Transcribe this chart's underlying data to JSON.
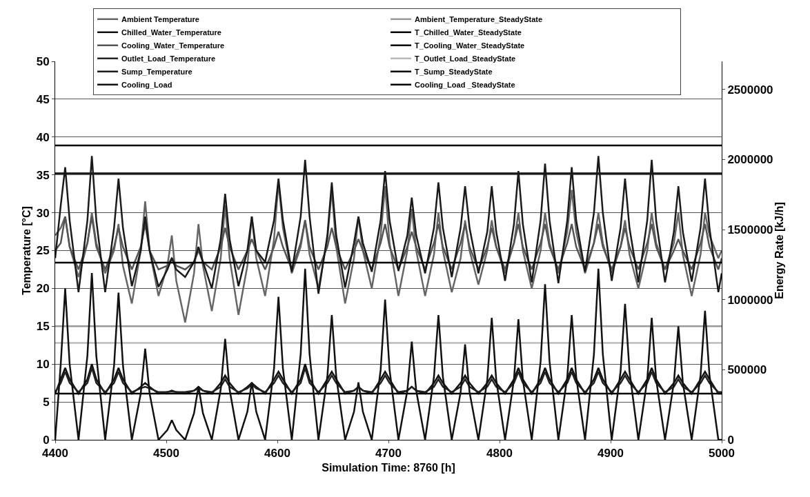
{
  "chart_data": {
    "type": "line",
    "xlabel": "Simulation Time: 8760 [h]",
    "ylabel": "Temperature [°C]",
    "y2label": "Energy Rate [kJ/h]",
    "x": [
      4400,
      4405,
      4409,
      4413,
      4421,
      4429,
      4433,
      4437,
      4445,
      4453,
      4457,
      4461,
      4469,
      4477,
      4481,
      4485,
      4493,
      4501,
      4505,
      4509,
      4517,
      4525,
      4529,
      4533,
      4541,
      4549,
      4553,
      4557,
      4565,
      4573,
      4577,
      4581,
      4589,
      4597,
      4601,
      4605,
      4613,
      4621,
      4625,
      4629,
      4637,
      4645,
      4649,
      4653,
      4661,
      4669,
      4673,
      4677,
      4685,
      4693,
      4697,
      4701,
      4709,
      4717,
      4721,
      4725,
      4733,
      4741,
      4745,
      4749,
      4757,
      4765,
      4769,
      4773,
      4781,
      4789,
      4793,
      4797,
      4805,
      4813,
      4817,
      4821,
      4829,
      4837,
      4841,
      4845,
      4853,
      4861,
      4865,
      4869,
      4877,
      4885,
      4889,
      4893,
      4901,
      4909,
      4913,
      4917,
      4925,
      4933,
      4937,
      4941,
      4949,
      4957,
      4961,
      4965,
      4973,
      4981,
      4985,
      4989,
      4997,
      5000
    ],
    "xlim": [
      4400,
      5000
    ],
    "xticks": [
      4400,
      4500,
      4600,
      4700,
      4800,
      4900,
      5000
    ],
    "ylim": [
      0,
      50
    ],
    "yticks": [
      0,
      5,
      10,
      15,
      20,
      25,
      30,
      35,
      40,
      45,
      50
    ],
    "y2lim": [
      0,
      2700000
    ],
    "y2ticks": [
      0,
      500000,
      1000000,
      1500000,
      2000000,
      2500000
    ],
    "grid": "y",
    "legend": "top",
    "marker": "none",
    "line_style": "solid",
    "series": [
      {
        "name": "Ambient Temperature",
        "color": "#666666",
        "values": [
          27,
          28,
          29.5,
          25.5,
          21.5,
          26,
          30,
          26,
          22,
          25,
          28.5,
          23,
          18,
          25,
          31.5,
          25,
          19,
          23,
          27,
          21,
          15.5,
          22,
          28.5,
          23,
          17,
          24,
          31,
          24,
          16.5,
          23,
          29.5,
          24,
          19,
          26.5,
          34,
          28,
          22,
          25.5,
          29,
          24.5,
          20,
          26.5,
          33,
          25.5,
          18,
          24,
          29.5,
          25,
          20,
          27,
          33.5,
          26,
          19,
          25,
          30.5,
          25,
          19,
          24.5,
          30,
          25,
          19.5,
          24,
          29,
          25,
          20.5,
          25,
          29,
          25.5,
          22,
          26,
          30,
          25,
          20,
          25,
          30,
          26,
          22,
          27.5,
          33,
          27.5,
          22,
          26,
          30,
          26,
          22,
          25.5,
          29,
          24.5,
          20,
          25,
          30,
          26,
          22.5,
          26,
          30,
          24.5,
          19,
          24.5,
          30,
          27,
          24,
          25
        ]
      },
      {
        "name": "Ambient_Temperature_SteadyState",
        "color": "#999999",
        "values": [
          15,
          15,
          15,
          15,
          15,
          15,
          15,
          15,
          15,
          15,
          15,
          15,
          15,
          15,
          15,
          15,
          15,
          15,
          15,
          15,
          15,
          15,
          15,
          15,
          15,
          15,
          15,
          15,
          15,
          15,
          15,
          15,
          15,
          15,
          15,
          15,
          15,
          15,
          15,
          15,
          15,
          15,
          15,
          15,
          15,
          15,
          15,
          15,
          15,
          15,
          15,
          15,
          15,
          15,
          15,
          15,
          15,
          15,
          15,
          15,
          15,
          15,
          15,
          15,
          15,
          15,
          15,
          15,
          15,
          15,
          15,
          15,
          15,
          15,
          15,
          15,
          15,
          15,
          15,
          15,
          15,
          15,
          15,
          15,
          15,
          15,
          15,
          15,
          15,
          15,
          15,
          15,
          15,
          15,
          15,
          15,
          15,
          15,
          15,
          15,
          15,
          15
        ]
      },
      {
        "name": "Chilled_Water_Temperature",
        "color": "#111111",
        "values": [
          6.1,
          8,
          9.5,
          8,
          6.1,
          8,
          10,
          8,
          6.1,
          8,
          9.5,
          8,
          6.1,
          7,
          7.5,
          7,
          6.1,
          6.3,
          6.5,
          6.3,
          6.1,
          6.5,
          7,
          6.5,
          6.1,
          7.5,
          8.5,
          7.5,
          6.1,
          7,
          7.5,
          7,
          6.1,
          8,
          9,
          8,
          6.1,
          8,
          10,
          8,
          6.1,
          8,
          9,
          8,
          6.1,
          6.5,
          7,
          6.5,
          6.1,
          8,
          9,
          8,
          6.1,
          6.5,
          7,
          6.5,
          6.1,
          7.5,
          8.5,
          7.5,
          6.1,
          7.5,
          8.5,
          7.5,
          6.1,
          7.5,
          8.5,
          7.5,
          6.1,
          8,
          9.5,
          8,
          6.1,
          8,
          9.5,
          8,
          6.1,
          8,
          9.5,
          8,
          6.1,
          8,
          9.5,
          8,
          6.1,
          8,
          9,
          8,
          6.1,
          8,
          9.5,
          8,
          6.1,
          7.5,
          8.5,
          7.5,
          6.1,
          8,
          9,
          8,
          6.1,
          6.1
        ]
      },
      {
        "name": "T_Chilled_Water_SteadyState",
        "color": "#000000",
        "values": [
          6.1,
          6.1,
          6.1,
          6.1,
          6.1,
          6.1,
          6.1,
          6.1,
          6.1,
          6.1,
          6.1,
          6.1,
          6.1,
          6.1,
          6.1,
          6.1,
          6.1,
          6.1,
          6.1,
          6.1,
          6.1,
          6.1,
          6.1,
          6.1,
          6.1,
          6.1,
          6.1,
          6.1,
          6.1,
          6.1,
          6.1,
          6.1,
          6.1,
          6.1,
          6.1,
          6.1,
          6.1,
          6.1,
          6.1,
          6.1,
          6.1,
          6.1,
          6.1,
          6.1,
          6.1,
          6.1,
          6.1,
          6.1,
          6.1,
          6.1,
          6.1,
          6.1,
          6.1,
          6.1,
          6.1,
          6.1,
          6.1,
          6.1,
          6.1,
          6.1,
          6.1,
          6.1,
          6.1,
          6.1,
          6.1,
          6.1,
          6.1,
          6.1,
          6.1,
          6.1,
          6.1,
          6.1,
          6.1,
          6.1,
          6.1,
          6.1,
          6.1,
          6.1,
          6.1,
          6.1,
          6.1,
          6.1,
          6.1,
          6.1,
          6.1,
          6.1,
          6.1,
          6.1,
          6.1,
          6.1,
          6.1,
          6.1,
          6.1,
          6.1,
          6.1,
          6.1,
          6.1,
          6.1,
          6.1,
          6.1,
          6.1,
          6.1
        ]
      },
      {
        "name": "Cooling_Water_Temperature",
        "color": "#555555",
        "values": [
          25,
          26,
          29.5,
          25.5,
          22.5,
          26,
          29.5,
          25.5,
          22.5,
          25.5,
          28,
          25.5,
          22.5,
          25.5,
          28.5,
          25,
          22.5,
          23,
          24,
          23,
          22.5,
          23.5,
          25,
          23.5,
          22.5,
          25.5,
          28,
          25.5,
          22.5,
          25,
          26.5,
          25,
          22.5,
          25.5,
          27.5,
          25.5,
          22.5,
          26,
          29,
          25.5,
          22.5,
          25.5,
          28,
          25.5,
          22.5,
          25,
          26.5,
          25,
          22.5,
          26,
          28.5,
          25.5,
          22.5,
          25.5,
          27.5,
          25.5,
          22.5,
          26,
          28.5,
          25.5,
          22.5,
          26,
          28.5,
          25.5,
          22.5,
          25.5,
          28,
          25.5,
          22.5,
          26,
          28.5,
          25.5,
          22.5,
          26,
          28.5,
          25.5,
          22.5,
          26,
          28.5,
          25.5,
          22.5,
          26,
          28.5,
          25.5,
          22.5,
          25.5,
          28,
          25.5,
          22.5,
          26,
          28.5,
          25.5,
          22.5,
          25,
          26.5,
          25,
          22.5,
          26,
          28.5,
          25.5,
          22.5,
          24
        ]
      },
      {
        "name": "T_Cooling_Water_SteadyState",
        "color": "#000000",
        "values": [
          35.2,
          35.2,
          35.2,
          35.2,
          35.2,
          35.2,
          35.2,
          35.2,
          35.2,
          35.2,
          35.2,
          35.2,
          35.2,
          35.2,
          35.2,
          35.2,
          35.2,
          35.2,
          35.2,
          35.2,
          35.2,
          35.2,
          35.2,
          35.2,
          35.2,
          35.2,
          35.2,
          35.2,
          35.2,
          35.2,
          35.2,
          35.2,
          35.2,
          35.2,
          35.2,
          35.2,
          35.2,
          35.2,
          35.2,
          35.2,
          35.2,
          35.2,
          35.2,
          35.2,
          35.2,
          35.2,
          35.2,
          35.2,
          35.2,
          35.2,
          35.2,
          35.2,
          35.2,
          35.2,
          35.2,
          35.2,
          35.2,
          35.2,
          35.2,
          35.2,
          35.2,
          35.2,
          35.2,
          35.2,
          35.2,
          35.2,
          35.2,
          35.2,
          35.2,
          35.2,
          35.2,
          35.2,
          35.2,
          35.2,
          35.2,
          35.2,
          35.2,
          35.2,
          35.2,
          35.2,
          35.2,
          35.2,
          35.2,
          35.2,
          35.2,
          35.2,
          35.2,
          35.2,
          35.2,
          35.2,
          35.2,
          35.2,
          35.2,
          35.2,
          35.2,
          35.2,
          35.2,
          35.2,
          35.2,
          35.2,
          35.2,
          35.2
        ]
      },
      {
        "name": "Outlet_Load_Temperature",
        "color": "#222222",
        "values": [
          6.3,
          7.5,
          9,
          7.5,
          6.3,
          7.5,
          9.5,
          7.5,
          6.3,
          7.5,
          9,
          7.5,
          6.3,
          6.8,
          7,
          6.8,
          6.3,
          6.3,
          6.4,
          6.3,
          6.3,
          6.5,
          6.8,
          6.5,
          6.3,
          7,
          8,
          7,
          6.3,
          6.8,
          7.3,
          6.8,
          6.3,
          7.5,
          8.5,
          7.5,
          6.3,
          7.5,
          9.5,
          7.5,
          6.3,
          7.5,
          8.5,
          7.5,
          6.3,
          6.5,
          7,
          6.5,
          6.3,
          7.5,
          8.5,
          7.5,
          6.3,
          6.5,
          7,
          6.5,
          6.3,
          7,
          8,
          7,
          6.3,
          7,
          8,
          7,
          6.3,
          7,
          8,
          7,
          6.3,
          7.5,
          9,
          7.5,
          6.3,
          7.5,
          9,
          7.5,
          6.3,
          7.5,
          9,
          7.5,
          6.3,
          7.5,
          9,
          7.5,
          6.3,
          7.5,
          8.5,
          7.5,
          6.3,
          7.5,
          9,
          7.5,
          6.3,
          7,
          8,
          7,
          6.3,
          7.5,
          8.5,
          7.5,
          6.3,
          6.3
        ]
      },
      {
        "name": "T_Outlet_Load_SteadyState",
        "color": "#bbbbbb",
        "values": [
          12.8,
          12.8,
          12.8,
          12.8,
          12.8,
          12.8,
          12.8,
          12.8,
          12.8,
          12.8,
          12.8,
          12.8,
          12.8,
          12.8,
          12.8,
          12.8,
          12.8,
          12.8,
          12.8,
          12.8,
          12.8,
          12.8,
          12.8,
          12.8,
          12.8,
          12.8,
          12.8,
          12.8,
          12.8,
          12.8,
          12.8,
          12.8,
          12.8,
          12.8,
          12.8,
          12.8,
          12.8,
          12.8,
          12.8,
          12.8,
          12.8,
          12.8,
          12.8,
          12.8,
          12.8,
          12.8,
          12.8,
          12.8,
          12.8,
          12.8,
          12.8,
          12.8,
          12.8,
          12.8,
          12.8,
          12.8,
          12.8,
          12.8,
          12.8,
          12.8,
          12.8,
          12.8,
          12.8,
          12.8,
          12.8,
          12.8,
          12.8,
          12.8,
          12.8,
          12.8,
          12.8,
          12.8,
          12.8,
          12.8,
          12.8,
          12.8,
          12.8,
          12.8,
          12.8,
          12.8,
          12.8,
          12.8,
          12.8,
          12.8,
          12.8,
          12.8,
          12.8,
          12.8,
          12.8,
          12.8,
          12.8,
          12.8,
          12.8,
          12.8,
          12.8,
          12.8,
          12.8,
          12.8,
          12.8,
          12.8,
          12.8,
          12.8
        ]
      },
      {
        "name": "Sump_Temperature",
        "color": "#1a1a1a",
        "values": [
          24,
          31,
          36,
          29,
          19.5,
          29,
          37.5,
          29,
          19.5,
          28,
          34.5,
          28,
          20.3,
          25,
          29.5,
          25,
          20.2,
          22.5,
          24,
          22.5,
          21.5,
          23.5,
          25.5,
          23.5,
          20,
          26.5,
          32.5,
          26.5,
          20.3,
          25,
          29.5,
          25,
          23.5,
          29,
          34.5,
          29,
          22.2,
          29.5,
          37,
          29.5,
          19.3,
          27,
          34,
          27,
          20.1,
          26,
          29.5,
          26,
          22.2,
          29,
          35.5,
          29,
          22.3,
          27,
          32,
          27,
          22,
          28,
          34,
          28,
          21.5,
          28,
          33.5,
          28,
          22,
          27.5,
          33.5,
          27.5,
          21,
          28.5,
          35.5,
          28.5,
          20.8,
          29,
          36.5,
          29,
          20.7,
          29,
          36,
          29,
          22.2,
          30,
          37.5,
          30,
          21,
          28,
          34.5,
          28,
          20.8,
          29,
          37,
          29,
          20.8,
          27.5,
          33.5,
          27.5,
          20.9,
          28,
          34.5,
          28,
          19.5,
          22
        ]
      },
      {
        "name": "T_Sump_SteadyState",
        "color": "#000000",
        "values": [
          23.4,
          23.4,
          23.4,
          23.4,
          23.4,
          23.4,
          23.4,
          23.4,
          23.4,
          23.4,
          23.4,
          23.4,
          23.4,
          23.4,
          23.4,
          23.4,
          23.4,
          23.4,
          23.4,
          23.4,
          23.4,
          23.4,
          23.4,
          23.4,
          23.4,
          23.4,
          23.4,
          23.4,
          23.4,
          23.4,
          23.4,
          23.4,
          23.4,
          23.4,
          23.4,
          23.4,
          23.4,
          23.4,
          23.4,
          23.4,
          23.4,
          23.4,
          23.4,
          23.4,
          23.4,
          23.4,
          23.4,
          23.4,
          23.4,
          23.4,
          23.4,
          23.4,
          23.4,
          23.4,
          23.4,
          23.4,
          23.4,
          23.4,
          23.4,
          23.4,
          23.4,
          23.4,
          23.4,
          23.4,
          23.4,
          23.4,
          23.4,
          23.4,
          23.4,
          23.4,
          23.4,
          23.4,
          23.4,
          23.4,
          23.4,
          23.4,
          23.4,
          23.4,
          23.4,
          23.4,
          23.4,
          23.4,
          23.4,
          23.4,
          23.4,
          23.4,
          23.4,
          23.4,
          23.4,
          23.4,
          23.4,
          23.4,
          23.4,
          23.4,
          23.4,
          23.4,
          23.4,
          23.4,
          23.4,
          23.4,
          23.4,
          23.4
        ]
      },
      {
        "name": "Cooling_Load",
        "color": "#111111",
        "axis": "y2",
        "values": [
          0,
          540000,
          1080000,
          540000,
          0,
          600000,
          1190000,
          600000,
          0,
          530000,
          1050000,
          530000,
          0,
          330000,
          650000,
          330000,
          0,
          70000,
          140000,
          70000,
          0,
          190000,
          380000,
          190000,
          0,
          360000,
          720000,
          360000,
          0,
          200000,
          410000,
          200000,
          0,
          510000,
          1020000,
          510000,
          0,
          610000,
          1220000,
          610000,
          0,
          450000,
          890000,
          450000,
          0,
          200000,
          410000,
          200000,
          0,
          500000,
          1000000,
          500000,
          0,
          350000,
          700000,
          350000,
          0,
          450000,
          890000,
          450000,
          0,
          340000,
          680000,
          340000,
          0,
          430000,
          870000,
          430000,
          0,
          430000,
          860000,
          430000,
          0,
          560000,
          1110000,
          560000,
          0,
          450000,
          890000,
          450000,
          0,
          610000,
          1220000,
          610000,
          0,
          490000,
          970000,
          490000,
          0,
          430000,
          870000,
          430000,
          0,
          410000,
          810000,
          410000,
          0,
          460000,
          920000,
          460000,
          0,
          0
        ]
      },
      {
        "name": "Cooling_Load _SteadyState",
        "color": "#000000",
        "axis": "y2",
        "values": [
          2100000,
          2100000,
          2100000,
          2100000,
          2100000,
          2100000,
          2100000,
          2100000,
          2100000,
          2100000,
          2100000,
          2100000,
          2100000,
          2100000,
          2100000,
          2100000,
          2100000,
          2100000,
          2100000,
          2100000,
          2100000,
          2100000,
          2100000,
          2100000,
          2100000,
          2100000,
          2100000,
          2100000,
          2100000,
          2100000,
          2100000,
          2100000,
          2100000,
          2100000,
          2100000,
          2100000,
          2100000,
          2100000,
          2100000,
          2100000,
          2100000,
          2100000,
          2100000,
          2100000,
          2100000,
          2100000,
          2100000,
          2100000,
          2100000,
          2100000,
          2100000,
          2100000,
          2100000,
          2100000,
          2100000,
          2100000,
          2100000,
          2100000,
          2100000,
          2100000,
          2100000,
          2100000,
          2100000,
          2100000,
          2100000,
          2100000,
          2100000,
          2100000,
          2100000,
          2100000,
          2100000,
          2100000,
          2100000,
          2100000,
          2100000,
          2100000,
          2100000,
          2100000,
          2100000,
          2100000,
          2100000,
          2100000,
          2100000,
          2100000,
          2100000,
          2100000,
          2100000,
          2100000,
          2100000,
          2100000,
          2100000,
          2100000,
          2100000,
          2100000,
          2100000,
          2100000,
          2100000,
          2100000,
          2100000,
          2100000,
          2100000,
          2100000
        ]
      }
    ]
  }
}
